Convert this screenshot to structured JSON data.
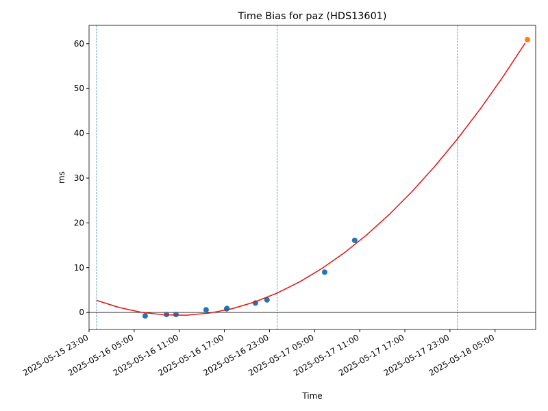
{
  "chart_data": {
    "type": "scatter",
    "title": "Time Bias for paz (HDS13601)",
    "xlabel": "Time",
    "ylabel": "ms",
    "xlim": [
      "2025-05-15 23:00",
      "2025-05-18 10:24"
    ],
    "xticks": [
      "2025-05-15 23:00",
      "2025-05-16 05:00",
      "2025-05-16 11:00",
      "2025-05-16 17:00",
      "2025-05-16 23:00",
      "2025-05-17 05:00",
      "2025-05-17 11:00",
      "2025-05-17 17:00",
      "2025-05-17 23:00",
      "2025-05-18 05:00"
    ],
    "ylim": [
      -3.8,
      64.1
    ],
    "yticks": [
      0,
      10,
      20,
      30,
      40,
      50,
      60
    ],
    "hlines": [
      0
    ],
    "hline_color": "#000000",
    "vlines": [
      "2025-05-16 00:00",
      "2025-05-17 00:00",
      "2025-05-18 00:00"
    ],
    "vline_color": "#1f77b4",
    "series": [
      {
        "kind": "points",
        "color": "#1f77b4",
        "x": [
          "2025-05-16 06:28",
          "2025-05-16 09:18",
          "2025-05-16 10:34",
          "2025-05-16 14:34",
          "2025-05-16 17:18",
          "2025-05-16 17:20",
          "2025-05-16 21:08",
          "2025-05-16 22:40",
          "2025-05-17 06:20",
          "2025-05-17 10:20"
        ],
        "values": [
          -0.77,
          -0.45,
          -0.45,
          0.6,
          0.8,
          0.9,
          2.1,
          2.8,
          9.0,
          16.1
        ]
      },
      {
        "kind": "points",
        "color": "#ff7f0e",
        "x": [
          "2025-05-18 09:18"
        ],
        "values": [
          60.9
        ]
      },
      {
        "kind": "line",
        "color": "#e8100e",
        "x": [
          "2025-05-16 00:00",
          "2025-05-16 03:00",
          "2025-05-16 06:00",
          "2025-05-16 09:00",
          "2025-05-16 12:00",
          "2025-05-16 15:00",
          "2025-05-16 18:00",
          "2025-05-16 21:00",
          "2025-05-17 00:00",
          "2025-05-17 03:00",
          "2025-05-17 06:00",
          "2025-05-17 09:00",
          "2025-05-17 12:00",
          "2025-05-17 15:00",
          "2025-05-17 18:00",
          "2025-05-17 21:00",
          "2025-05-18 00:00",
          "2025-05-18 03:00",
          "2025-05-18 06:00",
          "2025-05-18 09:00"
        ],
        "values": [
          2.7,
          1.11,
          0.03,
          -0.54,
          -0.6,
          -0.14,
          0.83,
          2.32,
          4.31,
          6.82,
          9.85,
          13.38,
          17.43,
          21.99,
          27.07,
          32.66,
          38.75,
          45.36,
          52.49,
          60.13
        ]
      }
    ]
  }
}
